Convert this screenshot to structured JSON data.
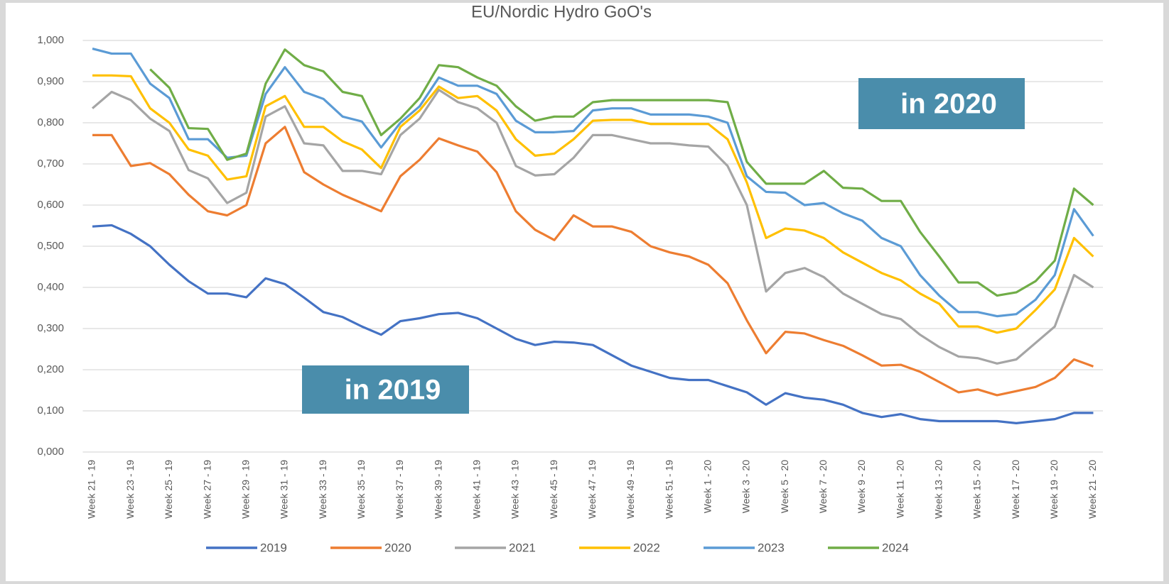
{
  "chart_data": {
    "type": "line",
    "title": "EU/Nordic Hydro GoO's",
    "categories": [
      "Week 21 - 19",
      null,
      "Week 23 - 19",
      null,
      "Week 25 - 19",
      null,
      "Week 27 - 19",
      null,
      "Week 29 - 19",
      null,
      "Week 31 - 19",
      null,
      "Week 33 - 19",
      null,
      "Week 35 - 19",
      null,
      "Week 37 - 19",
      null,
      "Week 39 - 19",
      null,
      "Week 41 - 19",
      null,
      "Week 43 - 19",
      null,
      "Week 45 - 19",
      null,
      "Week 47 - 19",
      null,
      "Week 49 - 19",
      null,
      "Week 51 - 19",
      null,
      "Week 1 - 20",
      null,
      "Week 3 - 20",
      null,
      "Week 5 - 20",
      null,
      "Week 7 - 20",
      null,
      "Week 9 - 20",
      null,
      "Week 11 - 20",
      null,
      "Week 13 - 20",
      null,
      "Week 15 - 20",
      null,
      "Week 17 - 20",
      null,
      "Week 19 - 20",
      null,
      "Week 21 - 20"
    ],
    "series": [
      {
        "name": "2019",
        "color": "#4472c4",
        "values": [
          0.548,
          0.551,
          0.53,
          0.5,
          0.455,
          0.415,
          0.385,
          0.385,
          0.376,
          0.422,
          0.408,
          0.375,
          0.34,
          0.328,
          0.305,
          0.285,
          0.318,
          0.325,
          0.335,
          0.338,
          0.325,
          0.3,
          0.275,
          0.26,
          0.268,
          0.266,
          0.26,
          0.235,
          0.21,
          0.195,
          0.18,
          0.175,
          0.175,
          0.16,
          0.145,
          0.115,
          0.143,
          0.132,
          0.127,
          0.115,
          0.095,
          0.085,
          0.092,
          0.08,
          0.075,
          0.075,
          0.075,
          0.075,
          0.07,
          0.075,
          0.08,
          0.095,
          0.095
        ]
      },
      {
        "name": "2020",
        "color": "#ed7d31",
        "values": [
          0.77,
          0.77,
          0.695,
          0.702,
          0.675,
          0.625,
          0.585,
          0.575,
          0.6,
          0.75,
          0.79,
          0.68,
          0.65,
          0.625,
          0.605,
          0.585,
          0.67,
          0.71,
          0.762,
          0.745,
          0.73,
          0.68,
          0.585,
          0.54,
          0.515,
          0.575,
          0.548,
          0.548,
          0.535,
          0.5,
          0.485,
          0.475,
          0.455,
          0.41,
          0.32,
          0.24,
          0.292,
          0.288,
          0.272,
          0.258,
          0.235,
          0.21,
          0.212,
          0.195,
          0.17,
          0.145,
          0.152,
          0.138,
          0.148,
          0.158,
          0.18,
          0.225,
          0.208
        ]
      },
      {
        "name": "2021",
        "color": "#a5a5a5",
        "values": [
          0.835,
          0.875,
          0.855,
          0.81,
          0.78,
          0.685,
          0.665,
          0.605,
          0.63,
          0.815,
          0.84,
          0.75,
          0.745,
          0.683,
          0.683,
          0.675,
          0.77,
          0.81,
          0.88,
          0.85,
          0.835,
          0.8,
          0.695,
          0.672,
          0.675,
          0.715,
          0.77,
          0.77,
          0.76,
          0.75,
          0.75,
          0.745,
          0.742,
          0.695,
          0.6,
          0.39,
          0.435,
          0.447,
          0.425,
          0.385,
          0.36,
          0.335,
          0.323,
          0.285,
          0.255,
          0.232,
          0.228,
          0.215,
          0.225,
          0.265,
          0.305,
          0.43,
          0.4
        ]
      },
      {
        "name": "2022",
        "color": "#ffc000",
        "values": [
          0.915,
          0.915,
          0.913,
          0.835,
          0.8,
          0.735,
          0.72,
          0.662,
          0.67,
          0.84,
          0.865,
          0.79,
          0.79,
          0.755,
          0.735,
          0.69,
          0.79,
          0.83,
          0.888,
          0.86,
          0.865,
          0.83,
          0.76,
          0.72,
          0.725,
          0.76,
          0.805,
          0.807,
          0.807,
          0.797,
          0.797,
          0.797,
          0.797,
          0.76,
          0.655,
          0.52,
          0.543,
          0.538,
          0.52,
          0.485,
          0.46,
          0.435,
          0.417,
          0.385,
          0.36,
          0.305,
          0.305,
          0.29,
          0.3,
          0.345,
          0.395,
          0.52,
          0.475
        ]
      },
      {
        "name": "2023",
        "color": "#5b9bd5",
        "values": [
          0.98,
          0.968,
          0.968,
          0.895,
          0.86,
          0.76,
          0.76,
          0.715,
          0.72,
          0.87,
          0.935,
          0.875,
          0.858,
          0.815,
          0.803,
          0.74,
          0.8,
          0.84,
          0.91,
          0.89,
          0.89,
          0.87,
          0.805,
          0.777,
          0.777,
          0.78,
          0.83,
          0.835,
          0.835,
          0.82,
          0.82,
          0.82,
          0.815,
          0.8,
          0.67,
          0.632,
          0.63,
          0.6,
          0.605,
          0.58,
          0.562,
          0.52,
          0.5,
          0.43,
          0.38,
          0.34,
          0.34,
          0.33,
          0.335,
          0.37,
          0.43,
          0.59,
          0.525
        ]
      },
      {
        "name": "2024",
        "color": "#70ad47",
        "values": [
          null,
          null,
          null,
          0.93,
          0.885,
          0.787,
          0.785,
          0.71,
          0.725,
          0.895,
          0.978,
          0.94,
          0.925,
          0.875,
          0.865,
          0.77,
          0.81,
          0.86,
          0.94,
          0.935,
          0.91,
          0.89,
          0.84,
          0.805,
          0.815,
          0.815,
          0.85,
          0.855,
          0.855,
          0.855,
          0.855,
          0.855,
          0.855,
          0.85,
          0.705,
          0.652,
          0.652,
          0.652,
          0.683,
          0.642,
          0.64,
          0.61,
          0.61,
          0.535,
          0.475,
          0.412,
          0.412,
          0.38,
          0.388,
          0.415,
          0.465,
          0.64,
          0.6
        ]
      }
    ],
    "ylim": [
      0,
      1
    ],
    "yticks": [
      {
        "value": 0,
        "label": "0,000"
      },
      {
        "value": 0.1,
        "label": "0,100"
      },
      {
        "value": 0.2,
        "label": "0,200"
      },
      {
        "value": 0.3,
        "label": "0,300"
      },
      {
        "value": 0.4,
        "label": "0,400"
      },
      {
        "value": 0.5,
        "label": "0,500"
      },
      {
        "value": 0.6,
        "label": "0,600"
      },
      {
        "value": 0.7,
        "label": "0,700"
      },
      {
        "value": 0.8,
        "label": "0,800"
      },
      {
        "value": 0.9,
        "label": "0,900"
      },
      {
        "value": 1,
        "label": "1,000"
      }
    ],
    "grid": true,
    "legend": "bottom",
    "annotations": [
      "in 2019",
      "in 2020"
    ],
    "annotation_color": "#4a8dab"
  }
}
